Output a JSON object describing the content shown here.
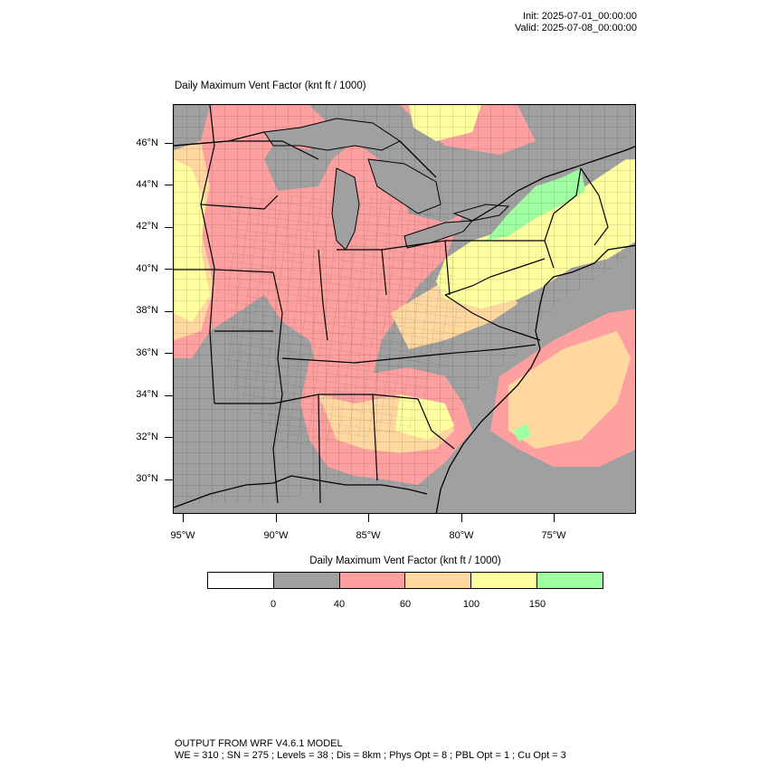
{
  "header": {
    "init": "Init: 2025-07-01_00:00:00",
    "valid": "Valid: 2025-07-08_00:00:00"
  },
  "map": {
    "title": "Daily Maximum Vent Factor   (knt ft / 1000)",
    "lat_labels": [
      "46°N",
      "44°N",
      "42°N",
      "40°N",
      "38°N",
      "36°N",
      "34°N",
      "32°N",
      "30°N"
    ],
    "lon_labels": [
      "95°W",
      "90°W",
      "85°W",
      "80°W",
      "75°W"
    ]
  },
  "colorbar": {
    "title": "Daily Maximum Vent Factor  (knt ft / 1000)",
    "labels": [
      "0",
      "40",
      "60",
      "100",
      "150"
    ],
    "colors": [
      "#ffffff",
      "#a0a0a0",
      "#ffa0a0",
      "#ffd8a0",
      "#ffffa0",
      "#a0ffa0"
    ]
  },
  "footer": {
    "line1": "OUTPUT FROM WRF V4.6.1 MODEL",
    "line2": "WE = 310 ; SN = 275 ; Levels = 38 ; Dis = 8km ; Phys Opt = 8 ; PBL Opt = 1 ; Cu Opt = 3"
  }
}
